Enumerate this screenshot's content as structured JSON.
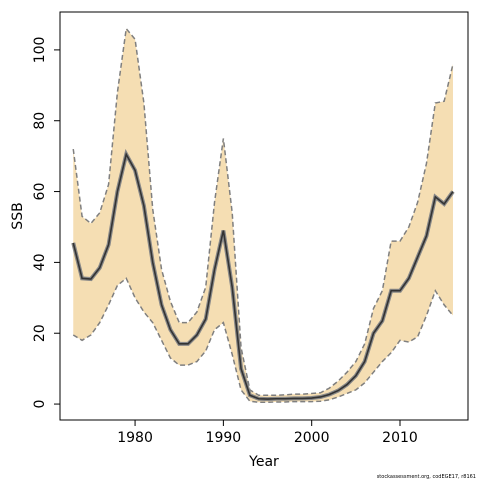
{
  "chart_data": {
    "type": "line",
    "xlabel": "Year",
    "ylabel": "SSB",
    "note": "stockassessment.org, codEGE17, r8161",
    "x": [
      1973,
      1974,
      1975,
      1976,
      1977,
      1978,
      1979,
      1980,
      1981,
      1982,
      1983,
      1984,
      1985,
      1986,
      1987,
      1988,
      1989,
      1990,
      1991,
      1992,
      1993,
      1994,
      1995,
      1996,
      1997,
      1998,
      1999,
      2000,
      2001,
      2002,
      2003,
      2004,
      2005,
      2006,
      2007,
      2008,
      2009,
      2010,
      2011,
      2012,
      2013,
      2014,
      2015,
      2016
    ],
    "values": [
      45.5,
      35.5,
      35.3,
      38.5,
      45,
      60,
      70.5,
      66,
      56,
      40,
      28,
      21,
      17,
      17,
      19.5,
      24,
      38,
      49,
      33,
      10,
      2.5,
      1.5,
      1.4,
      1.5,
      1.5,
      1.6,
      1.6,
      1.7,
      2,
      2.7,
      3.8,
      5.5,
      8,
      12,
      20,
      23.5,
      32,
      32,
      35.5,
      41.5,
      47.5,
      58.5,
      56.5,
      60
    ],
    "upper": [
      72,
      53,
      51,
      54,
      62,
      88,
      106,
      103,
      85,
      55,
      38,
      29,
      23,
      23,
      26,
      33,
      57,
      75,
      54,
      16,
      4,
      2.5,
      2.5,
      2.5,
      2.6,
      2.8,
      2.8,
      3,
      3.2,
      4.5,
      6.5,
      9,
      12,
      17,
      27,
      32,
      46,
      46,
      50,
      57,
      68,
      85,
      85.5,
      96
    ],
    "lower": [
      19.5,
      18,
      19.5,
      23,
      28,
      33.5,
      35.5,
      30,
      26,
      23,
      18,
      13,
      11,
      11,
      12,
      15,
      21,
      23,
      14,
      4,
      0.8,
      0.5,
      0.5,
      0.6,
      0.6,
      0.7,
      0.7,
      0.7,
      0.8,
      1.2,
      2,
      3,
      4,
      6,
      9,
      12,
      14.5,
      18,
      17.5,
      19,
      25,
      32,
      28,
      25
    ],
    "color": "#333333",
    "band_color": "#f5deb3",
    "band_edge_color": "#7f7f7f",
    "xlim": [
      1971.5,
      2017.7
    ],
    "ylim": [
      -4.5,
      110.7
    ],
    "xticks": [
      1980,
      1990,
      2000,
      2010
    ],
    "yticks": [
      0,
      20,
      40,
      60,
      80,
      100
    ]
  }
}
